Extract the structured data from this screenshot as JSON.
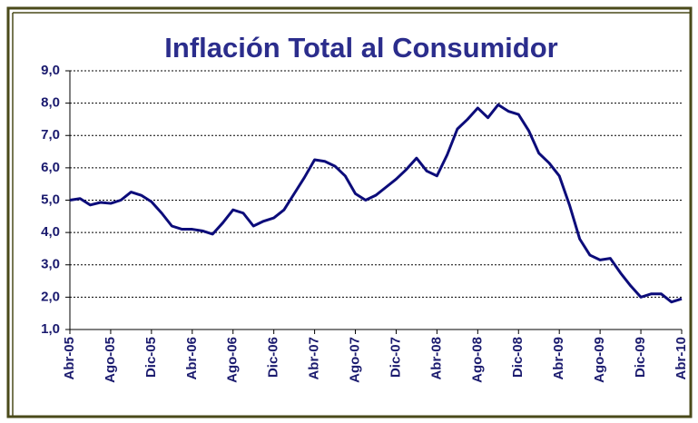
{
  "chart_data": {
    "type": "line",
    "title": "Inflación Total al Consumidor",
    "categories": [
      "Abr-05",
      null,
      null,
      null,
      "Ago-05",
      null,
      null,
      null,
      "Dic-05",
      null,
      null,
      null,
      "Abr-06",
      null,
      null,
      null,
      "Ago-06",
      null,
      null,
      null,
      "Dic-06",
      null,
      null,
      null,
      "Abr-07",
      null,
      null,
      null,
      "Ago-07",
      null,
      null,
      null,
      "Dic-07",
      null,
      null,
      null,
      "Abr-08",
      null,
      null,
      null,
      "Ago-08",
      null,
      null,
      null,
      "Dic-08",
      null,
      null,
      null,
      "Abr-09",
      null,
      null,
      null,
      "Ago-09",
      null,
      null,
      null,
      "Dic-09",
      null,
      null,
      null,
      "Abr-10"
    ],
    "series": [
      {
        "color": "#0c0c7a",
        "values": [
          5.0,
          5.05,
          4.85,
          4.93,
          4.9,
          5.0,
          5.25,
          5.15,
          4.95,
          4.6,
          4.2,
          4.1,
          4.1,
          4.05,
          3.95,
          4.3,
          4.7,
          4.6,
          4.2,
          4.35,
          4.45,
          4.7,
          5.2,
          5.7,
          6.25,
          6.2,
          6.05,
          5.75,
          5.2,
          5.0,
          5.15,
          5.4,
          5.65,
          5.95,
          6.3,
          5.9,
          5.75,
          6.4,
          7.2,
          7.5,
          7.85,
          7.55,
          7.95,
          7.75,
          7.65,
          7.15,
          6.45,
          6.15,
          5.75,
          4.85,
          3.8,
          3.3,
          3.15,
          3.2,
          2.75,
          2.35,
          2.0,
          2.1,
          2.1,
          1.85,
          1.95
        ]
      }
    ],
    "ylim": [
      1,
      9
    ],
    "yticks": [
      {
        "value": 1,
        "label": "1,0"
      },
      {
        "value": 2,
        "label": "2,0"
      },
      {
        "value": 3,
        "label": "3,0"
      },
      {
        "value": 4,
        "label": "4,0"
      },
      {
        "value": 5,
        "label": "5,0"
      },
      {
        "value": 6,
        "label": "6,0"
      },
      {
        "value": 7,
        "label": "7,0"
      },
      {
        "value": 8,
        "label": "8,0"
      },
      {
        "value": 9,
        "label": "9,0"
      }
    ],
    "grid": true
  }
}
